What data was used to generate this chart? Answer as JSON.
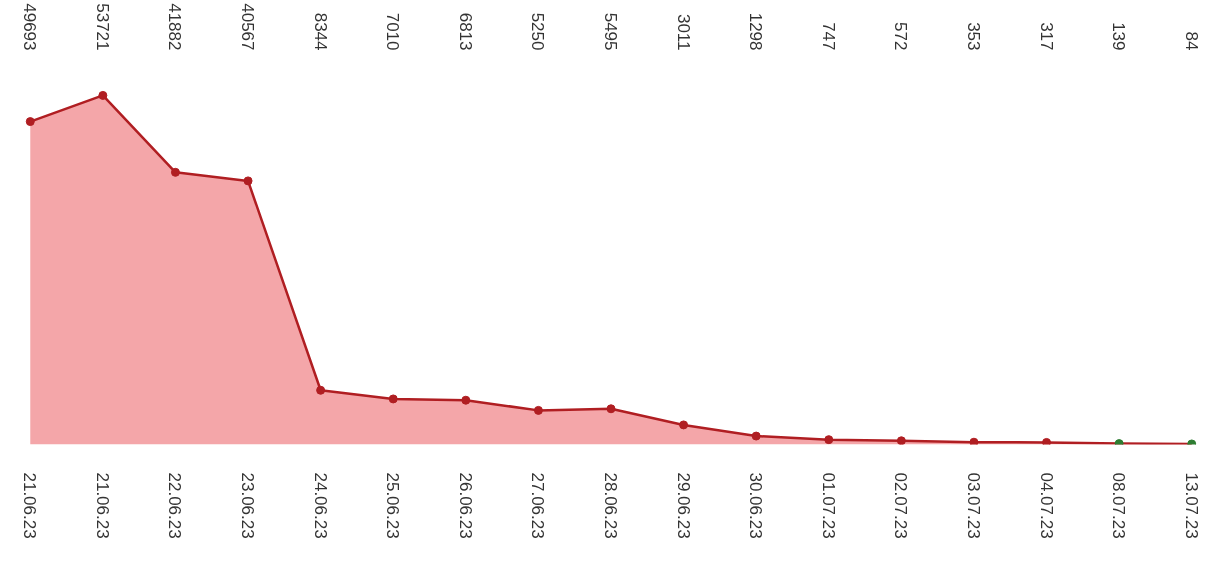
{
  "chart_data": {
    "type": "area",
    "categories": [
      "21.06.23",
      "21.06.23",
      "22.06.23",
      "23.06.23",
      "24.06.23",
      "25.06.23",
      "26.06.23",
      "27.06.23",
      "28.06.23",
      "29.06.23",
      "30.06.23",
      "01.07.23",
      "02.07.23",
      "03.07.23",
      "04.07.23",
      "08.07.23",
      "13.07.23"
    ],
    "series": [
      {
        "color": "#b01e22",
        "values": [
          49693,
          53721,
          41882,
          40567,
          8344,
          7010,
          6813,
          5250,
          5495,
          3011,
          1298,
          747,
          572,
          353,
          317,
          139,
          84
        ],
        "colors": [
          "#b01e22",
          "#b01e22",
          "#b01e22",
          "#b01e22",
          "#b01e22",
          "#b01e22",
          "#b01e22",
          "#b01e22",
          "#b01e22",
          "#b01e22",
          "#b01e22",
          "#b01e22",
          "#b01e22",
          "#b01e22",
          "#b01e22",
          "#2e7d32",
          "#2e7d32"
        ]
      }
    ],
    "data_labels": true,
    "marker": "circle",
    "grid": false,
    "tick_labels": "x"
  }
}
